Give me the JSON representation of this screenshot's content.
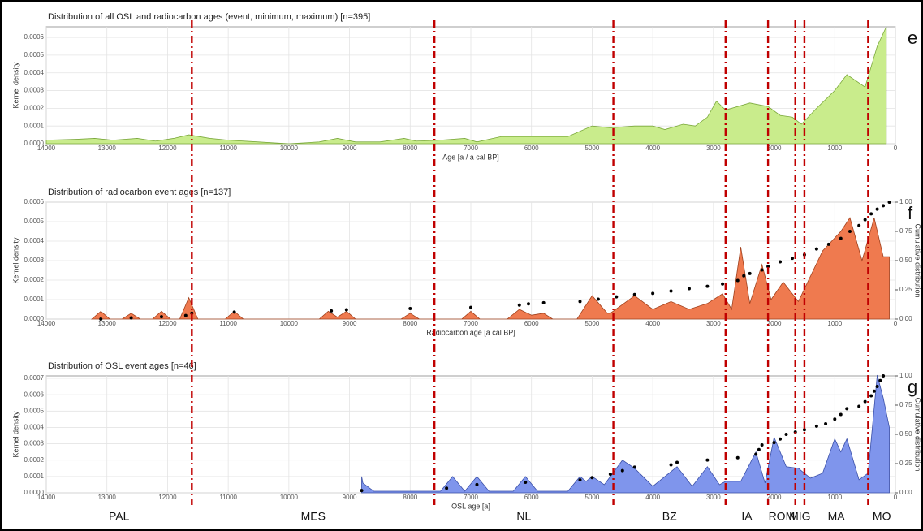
{
  "chart_data": [
    {
      "type": "area",
      "panel_label": "e",
      "title": "Distribution of all OSL and radiocarbon ages (event, minimum, maximum) [n=395]",
      "xlabel": "Age [a / a cal BP]",
      "ylabel": "Kernel density",
      "color": "#c9ec8c",
      "line_color": "#7aa83a",
      "xlim": [
        14000,
        0
      ],
      "xticks": [
        14000,
        13000,
        12000,
        11000,
        10000,
        9000,
        8000,
        7000,
        6000,
        5000,
        4000,
        3000,
        2000,
        1000,
        0
      ],
      "ylim": [
        0,
        0.00066
      ],
      "yticks": [
        {
          "value": 0,
          "label": "0.0000"
        },
        0.0001,
        0.0002,
        0.0003,
        0.0004,
        0.0005,
        0.0006
      ],
      "grid": true,
      "x": [
        14000,
        13500,
        13200,
        12900,
        12500,
        12200,
        11900,
        11650,
        11300,
        11000,
        10500,
        10000,
        9500,
        9200,
        8900,
        8500,
        8100,
        7900,
        7500,
        7100,
        6900,
        6500,
        5800,
        5400,
        5000,
        4700,
        4300,
        4000,
        3800,
        3500,
        3300,
        3100,
        2950,
        2800,
        2400,
        2100,
        1900,
        1700,
        1550,
        1300,
        1000,
        800,
        500,
        300,
        150
      ],
      "values": [
        2e-05,
        2.5e-05,
        3e-05,
        2e-05,
        3e-05,
        1.5e-05,
        3e-05,
        5e-05,
        3e-05,
        2e-05,
        1e-05,
        0,
        1e-05,
        3e-05,
        1e-05,
        1e-05,
        3e-05,
        1.5e-05,
        2e-05,
        3e-05,
        1e-05,
        4e-05,
        4e-05,
        4e-05,
        0.0001,
        9e-05,
        0.0001,
        0.0001,
        8e-05,
        0.00011,
        0.0001,
        0.00015,
        0.00024,
        0.00019,
        0.00023,
        0.00021,
        0.00016,
        0.00015,
        0.00011,
        0.0002,
        0.0003,
        0.00039,
        0.00032,
        0.00055,
        0.00066
      ]
    },
    {
      "type": "area",
      "panel_label": "f",
      "title": "Distribution of radiocarbon event ages [n=137]",
      "xlabel": "Radiocarbon age [a cal BP]",
      "ylabel": "Kernel density",
      "y2label": "Cumulative distribution",
      "color": "#ef7a4f",
      "line_color": "#a0401c",
      "xlim": [
        14000,
        0
      ],
      "xticks": [
        14000,
        13000,
        12000,
        11000,
        10000,
        9000,
        8000,
        7000,
        6000,
        5000,
        4000,
        3000,
        2000,
        1000,
        0
      ],
      "ylim": [
        0,
        0.0006
      ],
      "yticks": [
        {
          "value": 0,
          "label": "0.0000"
        },
        0.0001,
        0.0002,
        0.0003,
        0.0004,
        0.0005,
        0.0006
      ],
      "y2lim": [
        0,
        1
      ],
      "y2ticks": [
        {
          "value": 0,
          "label": "0.00"
        },
        0.25,
        {
          "value": 0.5,
          "label": "0.50"
        },
        0.75,
        {
          "value": 1,
          "label": "1.00"
        }
      ],
      "grid": true,
      "x": [
        13250,
        13100,
        12950,
        12750,
        12600,
        12450,
        12250,
        12100,
        11950,
        11800,
        11650,
        11500,
        11050,
        10900,
        10750,
        9500,
        9350,
        9200,
        9050,
        8900,
        8150,
        8000,
        7850,
        7150,
        7000,
        6850,
        6400,
        6200,
        6000,
        5800,
        5650,
        5250,
        5000,
        4750,
        4700,
        4300,
        4000,
        3700,
        3400,
        3100,
        2850,
        2700,
        2550,
        2400,
        2200,
        2050,
        1850,
        1600,
        1200,
        900,
        750,
        550,
        350,
        200,
        100
      ],
      "values": [
        0,
        4e-05,
        0,
        0,
        3e-05,
        0,
        0,
        4e-05,
        0,
        0,
        0.00011,
        0,
        0,
        4e-05,
        0,
        0,
        4e-05,
        1e-05,
        4e-05,
        0,
        0,
        3e-05,
        0,
        0,
        4e-05,
        0,
        0,
        5e-05,
        2e-05,
        3e-05,
        0,
        0,
        0.00012,
        3e-05,
        3e-05,
        0.00012,
        5e-05,
        9e-05,
        5e-05,
        8e-05,
        0.00013,
        5e-05,
        0.00037,
        8e-05,
        0.00028,
        0.0001,
        0.00019,
        9e-05,
        0.00035,
        0.00045,
        0.00052,
        0.0003,
        0.00052,
        0.00032,
        0.00032
      ],
      "points": {
        "color": "#000000",
        "x": [
          13100,
          12600,
          12100,
          11700,
          11600,
          10900,
          9300,
          9050,
          8000,
          7000,
          6200,
          6050,
          5800,
          5200,
          4900,
          4600,
          4300,
          4000,
          3700,
          3400,
          3100,
          2850,
          2600,
          2500,
          2400,
          2200,
          2100,
          1900,
          1700,
          1500,
          1300,
          1100,
          900,
          750,
          600,
          500,
          400,
          300,
          200,
          100
        ],
        "values": [
          0,
          0.01,
          0.02,
          0.03,
          0.05,
          0.06,
          0.07,
          0.08,
          0.09,
          0.1,
          0.12,
          0.13,
          0.14,
          0.15,
          0.17,
          0.19,
          0.21,
          0.22,
          0.24,
          0.26,
          0.28,
          0.3,
          0.33,
          0.37,
          0.39,
          0.42,
          0.45,
          0.49,
          0.52,
          0.55,
          0.6,
          0.64,
          0.69,
          0.75,
          0.8,
          0.85,
          0.9,
          0.94,
          0.97,
          1
        ]
      }
    },
    {
      "type": "area",
      "panel_label": "g",
      "title": "Distribution of OSL event ages [n=46]",
      "xlabel": "OSL age [a]",
      "ylabel": "Kernel density",
      "y2label": "Cumulative distribution",
      "color": "#7f95ec",
      "line_color": "#3a4fa8",
      "xlim": [
        14000,
        0
      ],
      "xticks": [
        14000,
        13000,
        12000,
        11000,
        10000,
        9000,
        8000,
        7000,
        6000,
        5000,
        4000,
        3000,
        2000,
        1000,
        0
      ],
      "ylim": [
        0,
        0.000715
      ],
      "yticks": [
        {
          "value": 0,
          "label": "0.0000"
        },
        0.0001,
        0.0002,
        0.0003,
        0.0004,
        0.0005,
        0.0006,
        0.0007
      ],
      "y2lim": [
        0,
        1
      ],
      "y2ticks": [
        {
          "value": 0,
          "label": "0.00"
        },
        0.25,
        {
          "value": 0.5,
          "label": "0.50"
        },
        0.75,
        {
          "value": 1,
          "label": "1.00"
        }
      ],
      "grid": true,
      "x": [
        8800,
        8780,
        8600,
        7500,
        7300,
        7100,
        6900,
        6700,
        6300,
        6100,
        5900,
        5400,
        5200,
        5100,
        5000,
        4800,
        4500,
        4300,
        4000,
        3600,
        3350,
        3100,
        2900,
        2800,
        2550,
        2300,
        2150,
        2000,
        1800,
        1600,
        1400,
        1200,
        1000,
        900,
        800,
        600,
        450,
        300,
        200,
        100
      ],
      "values": [
        0.0001,
        6e-05,
        1e-05,
        1e-05,
        0.0001,
        1e-05,
        0.0001,
        1e-05,
        1e-05,
        0.0001,
        1e-05,
        1e-05,
        0.0001,
        7e-05,
        0.0001,
        5e-05,
        0.0002,
        0.00015,
        4e-05,
        0.00016,
        4e-05,
        0.00016,
        5e-05,
        7e-05,
        7e-05,
        0.00025,
        6e-05,
        0.00034,
        0.00016,
        0.00015,
        9e-05,
        0.00012,
        0.00033,
        0.00025,
        0.00033,
        8e-05,
        0.00012,
        0.00072,
        0.00058,
        0.0004
      ],
      "points": {
        "color": "#000000",
        "x": [
          8800,
          7400,
          6900,
          6100,
          5200,
          5000,
          4700,
          4500,
          4300,
          3700,
          3600,
          3100,
          2600,
          2300,
          2250,
          2200,
          2000,
          1900,
          1800,
          1650,
          1500,
          1300,
          1150,
          1000,
          900,
          800,
          600,
          500,
          400,
          350,
          300,
          250,
          200
        ],
        "values": [
          0.02,
          0.04,
          0.07,
          0.09,
          0.11,
          0.13,
          0.16,
          0.19,
          0.22,
          0.24,
          0.26,
          0.28,
          0.3,
          0.33,
          0.37,
          0.41,
          0.43,
          0.46,
          0.5,
          0.52,
          0.54,
          0.57,
          0.59,
          0.63,
          0.67,
          0.72,
          0.74,
          0.78,
          0.83,
          0.87,
          0.91,
          0.96,
          1
        ]
      }
    }
  ],
  "boundaries": [
    11600,
    7600,
    4650,
    2800,
    2100,
    1650,
    1500,
    450
  ],
  "boundary_color": "#c00000",
  "periods": [
    "PAL",
    "MES",
    "NL",
    "BZ",
    "IA",
    "ROM",
    "MIG",
    "MA",
    "MO"
  ]
}
